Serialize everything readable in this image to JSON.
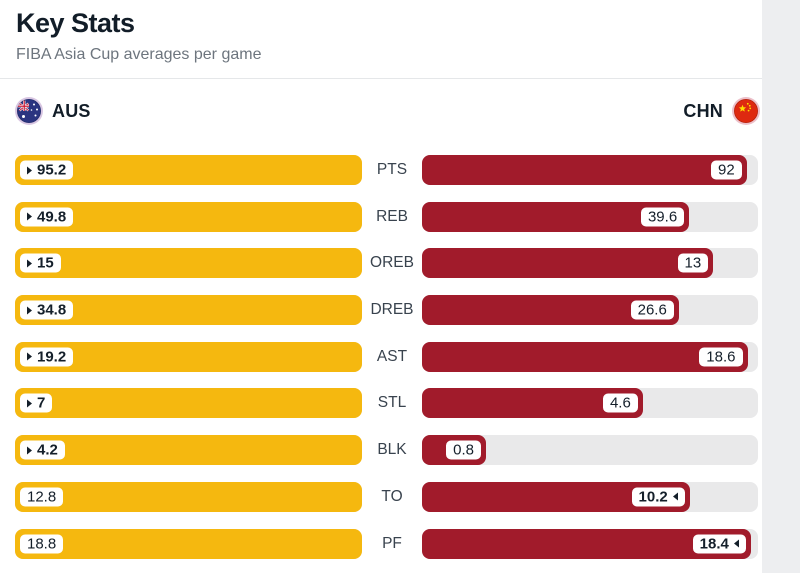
{
  "header": {
    "title": "Key Stats",
    "subtitle": "FIBA Asia Cup averages per game"
  },
  "teams": {
    "left": {
      "code": "AUS",
      "flag_icon": "australia-flag-icon"
    },
    "right": {
      "code": "CHN",
      "flag_icon": "china-flag-icon"
    }
  },
  "colors": {
    "aus_bar": "#F5B80F",
    "chn_bar": "#A11B2B",
    "track": "#E9E9EA",
    "text": "#141F2A",
    "page_background_strip": "#EDEEF0"
  },
  "chart_data": {
    "type": "bar",
    "orientation": "mirrored-horizontal",
    "title": "Key Stats",
    "subtitle": "FIBA Asia Cup averages per game",
    "categories": [
      "PTS",
      "REB",
      "OREB",
      "DREB",
      "AST",
      "STL",
      "BLK",
      "TO",
      "PF"
    ],
    "series": [
      {
        "name": "AUS",
        "values": [
          95.2,
          49.8,
          15,
          34.8,
          19.2,
          7,
          4.2,
          12.8,
          18.8
        ],
        "display": [
          "95.2",
          "49.8",
          "15",
          "34.8",
          "19.2",
          "7",
          "4.2",
          "12.8",
          "18.8"
        ],
        "color": "#F5B80F"
      },
      {
        "name": "CHN",
        "values": [
          92,
          39.6,
          13,
          26.6,
          18.6,
          4.6,
          0.8,
          10.2,
          18.4
        ],
        "display": [
          "92",
          "39.6",
          "13",
          "26.6",
          "18.6",
          "4.6",
          "0.8",
          "10.2",
          "18.4"
        ],
        "color": "#A11B2B"
      }
    ],
    "leaders": [
      "AUS",
      "AUS",
      "AUS",
      "AUS",
      "AUS",
      "AUS",
      "AUS",
      "CHN",
      "CHN"
    ],
    "scaling": "bar length proportional to value / max(row values); leader value shown bold with arrow toward its bar",
    "legend_position": "top header row with team flags",
    "grid": false
  }
}
